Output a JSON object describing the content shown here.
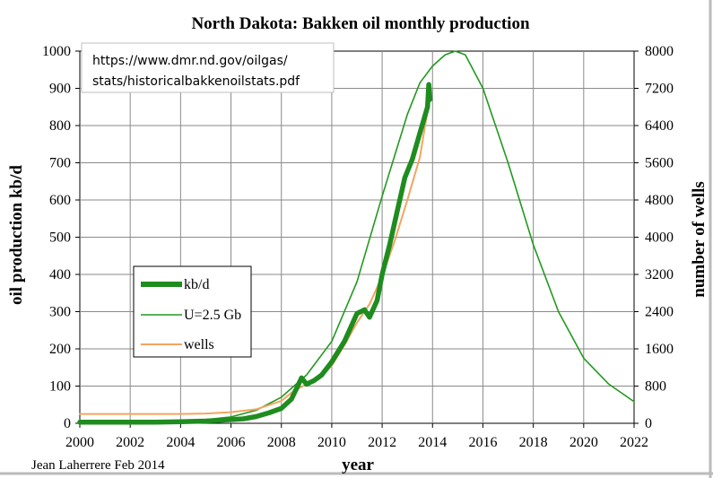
{
  "chart_data": {
    "type": "line",
    "title": "North Dakota: Bakken oil monthly production",
    "xlabel": "year",
    "ylabel": "oil production kb/d",
    "y2label": "number of wells",
    "xlim": [
      2000,
      2022
    ],
    "ylim": [
      0,
      1000
    ],
    "y2lim": [
      0,
      8000
    ],
    "x_ticks": [
      2000,
      2002,
      2004,
      2006,
      2008,
      2010,
      2012,
      2014,
      2016,
      2018,
      2020,
      2022
    ],
    "y_ticks": [
      0,
      100,
      200,
      300,
      400,
      500,
      600,
      700,
      800,
      900,
      1000
    ],
    "y2_ticks": [
      0,
      800,
      1600,
      2400,
      3200,
      4000,
      4800,
      5600,
      6400,
      7200,
      8000
    ],
    "grid": true,
    "legend_position": "left-middle",
    "source_note": [
      "https://www.dmr.nd.gov/oilgas/",
      "stats/historicalbakkenoilstats.pdf"
    ],
    "credit": "Jean Laherrere Feb 2014",
    "series": [
      {
        "name": "kb/d",
        "color": "#1e8c1e",
        "axis": "left",
        "x": [
          2000,
          2001,
          2002,
          2003,
          2004,
          2004.5,
          2005,
          2005.5,
          2006,
          2006.5,
          2007,
          2007.5,
          2008,
          2008.4,
          2008.8,
          2009,
          2009.3,
          2009.6,
          2010,
          2010.5,
          2011,
          2011.3,
          2011.5,
          2011.8,
          2012,
          2012.3,
          2012.6,
          2012.9,
          2013.2,
          2013.5,
          2013.8,
          2013.85,
          2013.9
        ],
        "y": [
          3,
          3,
          3,
          3,
          4,
          5,
          6,
          8,
          10,
          12,
          18,
          28,
          40,
          65,
          122,
          105,
          115,
          130,
          165,
          220,
          295,
          305,
          285,
          330,
          400,
          480,
          570,
          660,
          710,
          780,
          850,
          910,
          870
        ]
      },
      {
        "name": "U=2.5 Gb",
        "color": "#22991e",
        "axis": "left",
        "x": [
          2000,
          2003,
          2005,
          2006,
          2007,
          2008,
          2009,
          2010,
          2011,
          2012,
          2013,
          2013.5,
          2014,
          2014.5,
          2014.9,
          2015.3,
          2016,
          2017,
          2018,
          2019,
          2020,
          2021,
          2022
        ],
        "y": [
          3,
          5,
          10,
          17,
          35,
          70,
          130,
          220,
          380,
          610,
          830,
          915,
          960,
          990,
          1000,
          990,
          900,
          700,
          480,
          300,
          175,
          105,
          58
        ]
      },
      {
        "name": "wells",
        "color": "#f4a460",
        "axis": "right",
        "x": [
          2000,
          2002,
          2004,
          2005,
          2006,
          2007,
          2008,
          2008.5,
          2009,
          2009.5,
          2010,
          2010.5,
          2011,
          2011.5,
          2012,
          2012.5,
          2013,
          2013.5,
          2013.85
        ],
        "y": [
          200,
          200,
          200,
          210,
          240,
          300,
          480,
          700,
          840,
          960,
          1240,
          1680,
          2160,
          2560,
          3160,
          3920,
          4800,
          5720,
          6880
        ]
      }
    ]
  }
}
